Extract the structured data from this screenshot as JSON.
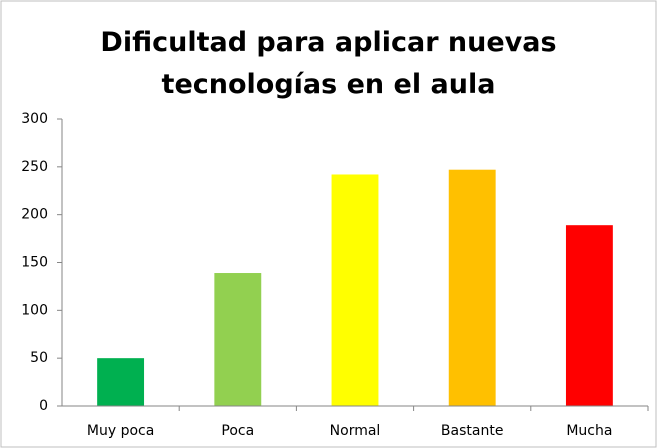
{
  "chart_data": {
    "type": "bar",
    "title": "Dificultad para aplicar nuevas tecnologías en el aula",
    "categories": [
      "Muy poca",
      "Poca",
      "Normal",
      "Bastante",
      "Mucha"
    ],
    "values": [
      50,
      139,
      242,
      247,
      189
    ],
    "colors": [
      "#00b050",
      "#92d050",
      "#ffff00",
      "#ffc000",
      "#ff0000"
    ],
    "ylim": [
      0,
      300
    ],
    "yticks": [
      0,
      50,
      100,
      150,
      200,
      250,
      300
    ],
    "grid": false
  }
}
